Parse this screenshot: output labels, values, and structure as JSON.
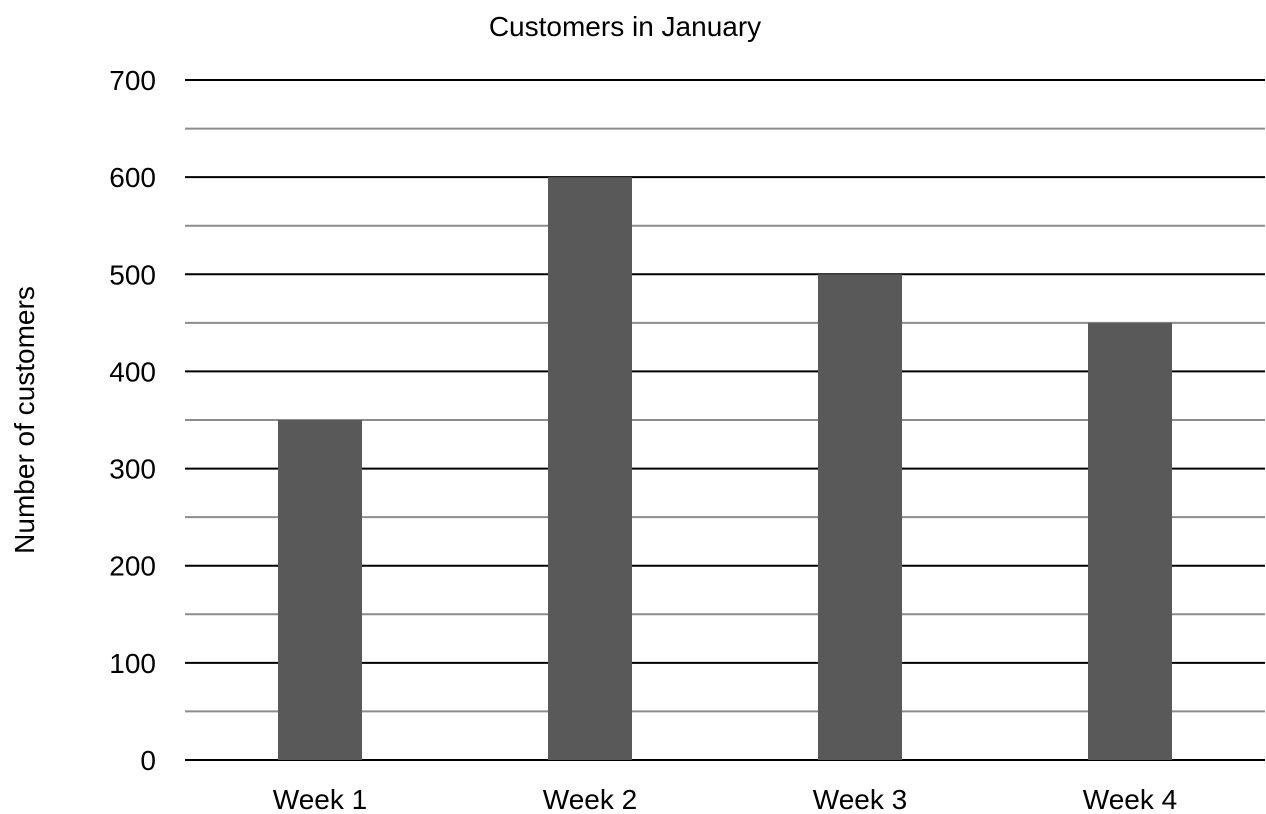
{
  "chart_data": {
    "type": "bar",
    "title": "Customers in January",
    "xlabel": "",
    "ylabel": "Number of customers",
    "categories": [
      "Week 1",
      "Week 2",
      "Week 3",
      "Week 4"
    ],
    "values": [
      350,
      600,
      500,
      450
    ],
    "ylim": [
      0,
      700
    ],
    "yticks": [
      "0",
      "100",
      "200",
      "300",
      "400",
      "500",
      "600",
      "700"
    ],
    "major_tick_step": 100,
    "minor_tick_step": 50,
    "grid": true,
    "legend": "none",
    "colors": {
      "bar": "#595959",
      "major_grid": "#000000",
      "minor_grid": "#8c8c8c",
      "text": "#000000"
    }
  }
}
